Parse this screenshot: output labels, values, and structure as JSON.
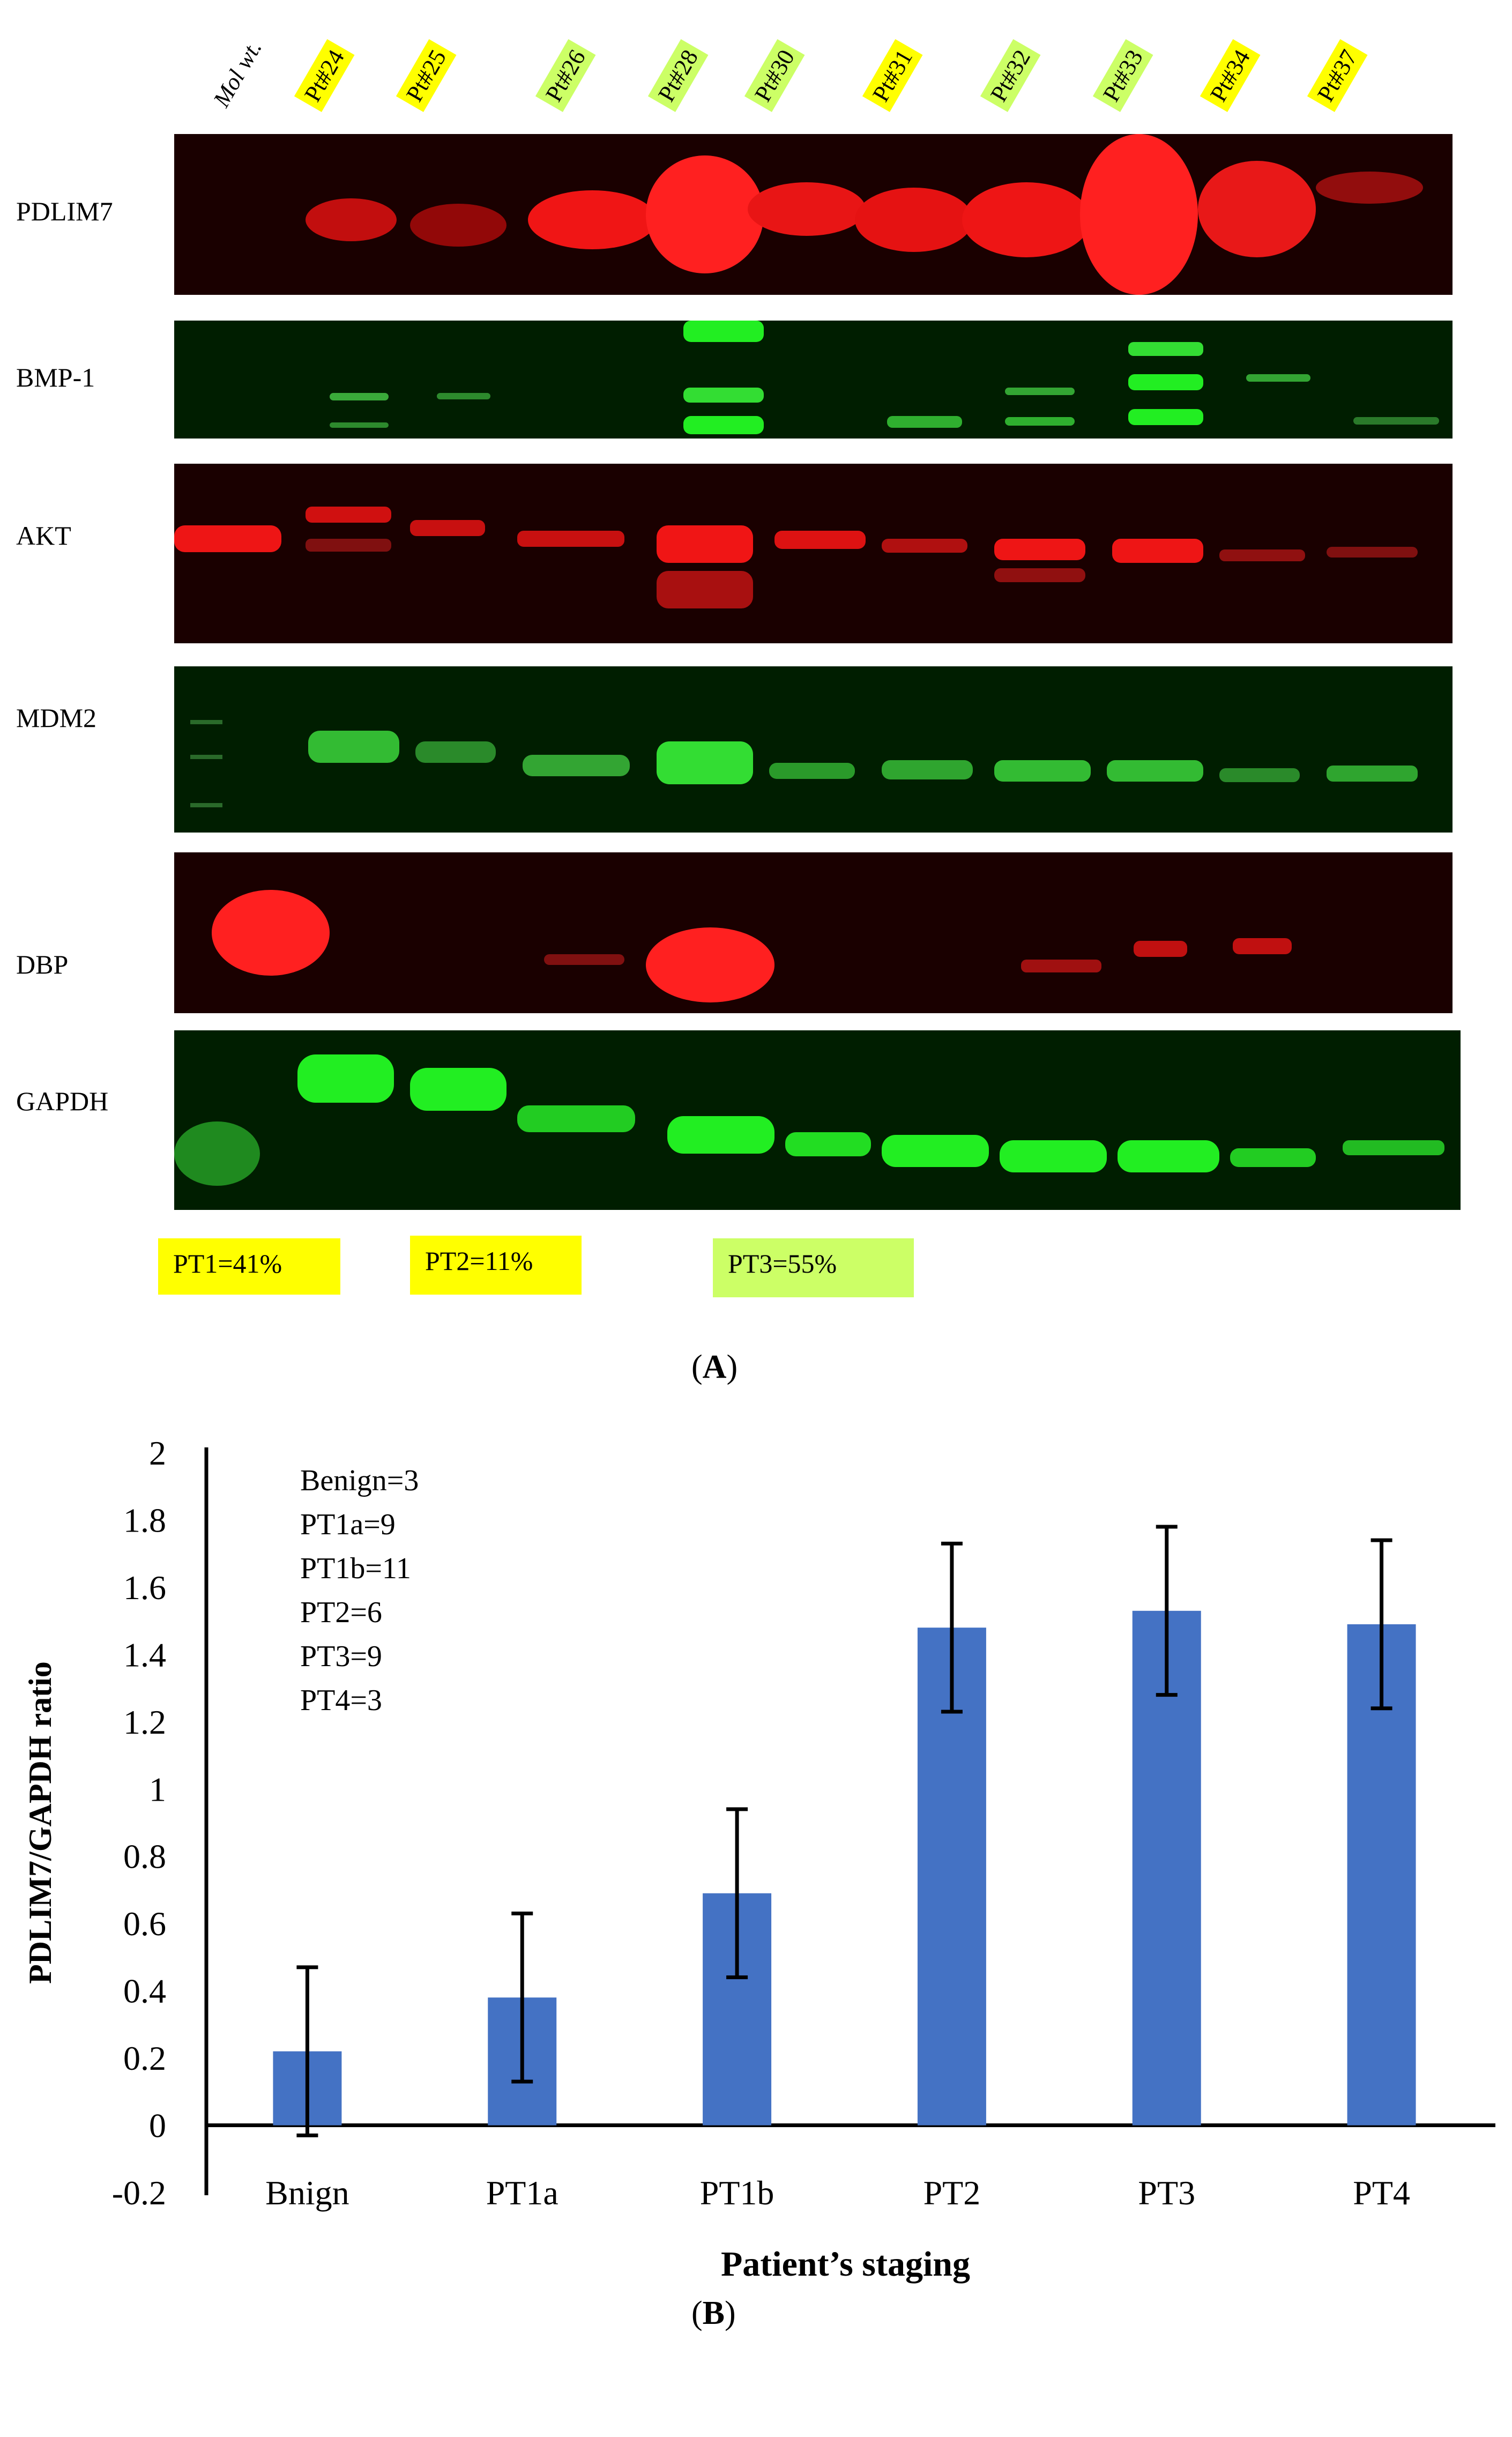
{
  "panel_a": {
    "mol_wt_label": "Mol wt.",
    "lanes": [
      {
        "label": "Pt#24",
        "color": "#ffff00"
      },
      {
        "label": "Pt#25",
        "color": "#ffff00"
      },
      {
        "label": "Pt#26",
        "color": "#ccff66"
      },
      {
        "label": "Pt#28",
        "color": "#ccff66"
      },
      {
        "label": "Pt#30",
        "color": "#ccff66"
      },
      {
        "label": "Pt#31",
        "color": "#ffff00"
      },
      {
        "label": "Pt#32",
        "color": "#ccff66"
      },
      {
        "label": "Pt#33",
        "color": "#ccff66"
      },
      {
        "label": "Pt#34",
        "color": "#ffff00"
      },
      {
        "label": "Pt#37",
        "color": "#ffff00"
      }
    ],
    "blots": [
      {
        "name": "PDLIM7",
        "channel": "red"
      },
      {
        "name": "BMP-1",
        "channel": "green"
      },
      {
        "name": "AKT",
        "channel": "red"
      },
      {
        "name": "MDM2",
        "channel": "green"
      },
      {
        "name": "DBP",
        "channel": "red"
      },
      {
        "name": "GAPDH",
        "channel": "green"
      }
    ],
    "legend": [
      {
        "text": "PT1=41%",
        "color": "#ffff00"
      },
      {
        "text": "PT2=11%",
        "color": "#ffff00"
      },
      {
        "text": "PT3=55%",
        "color": "#ccff66"
      }
    ],
    "caption": "A"
  },
  "panel_b": {
    "caption": "B",
    "annotation": [
      "Benign=3",
      "PT1a=9",
      "PT1b=11",
      "PT2=6",
      "PT3=9",
      "PT4=3"
    ],
    "colors": {
      "bar": "#4472c4"
    }
  },
  "chart_data": {
    "type": "bar",
    "categories": [
      "Bnign",
      "PT1a",
      "PT1b",
      "PT2",
      "PT3",
      "PT4"
    ],
    "values": [
      0.22,
      0.38,
      0.69,
      1.48,
      1.53,
      1.49
    ],
    "errors": [
      0.25,
      0.25,
      0.25,
      0.25,
      0.25,
      0.25
    ],
    "xlabel": "Patient’s staging",
    "ylabel": "PDLIM7/GAPDH ratio",
    "ylim": [
      -0.2,
      2
    ],
    "yticks": [
      "2",
      "1.8",
      "1.6",
      "1.4",
      "1.2",
      "1",
      "0.8",
      "0.6",
      "0.4",
      "0.2",
      "0",
      "-0.2"
    ],
    "grid": false
  }
}
